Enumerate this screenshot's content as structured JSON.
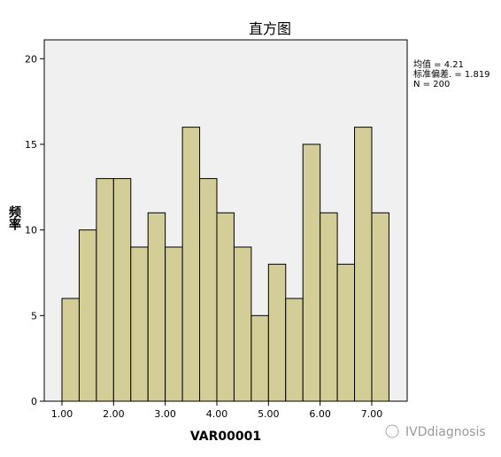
{
  "chart_data": {
    "type": "histogram",
    "title": "直方图",
    "x_label": "VAR00001",
    "y_label": "频率",
    "bins": [
      1.0,
      1.3333,
      1.6667,
      2.0,
      2.3333,
      2.6667,
      3.0,
      3.3333,
      3.6667,
      4.0,
      4.3333,
      4.6667,
      5.0,
      5.3333,
      5.6667,
      6.0,
      6.3333,
      6.6667,
      7.0,
      7.3333
    ],
    "counts": [
      6,
      10,
      13,
      13,
      9,
      11,
      9,
      16,
      13,
      11,
      9,
      5,
      8,
      6,
      15,
      11,
      8,
      16,
      11
    ],
    "color": "#d3ce97",
    "xlim": [
      0.657,
      7.686
    ],
    "xticks": [
      {
        "value": 1,
        "label": "1.00"
      },
      {
        "value": 2,
        "label": "2.00"
      },
      {
        "value": 3,
        "label": "3.00"
      },
      {
        "value": 4,
        "label": "4.00"
      },
      {
        "value": 5,
        "label": "5.00"
      },
      {
        "value": 6,
        "label": "6.00"
      },
      {
        "value": 7,
        "label": "7.00"
      }
    ],
    "ylim": [
      0,
      21.1
    ],
    "yticks": [
      0,
      5,
      10,
      15,
      20
    ],
    "stats": [
      "均值 = 4.21",
      "标准偏差. = 1.819",
      "N = 200"
    ],
    "watermark": "IVDdiagnosis"
  }
}
